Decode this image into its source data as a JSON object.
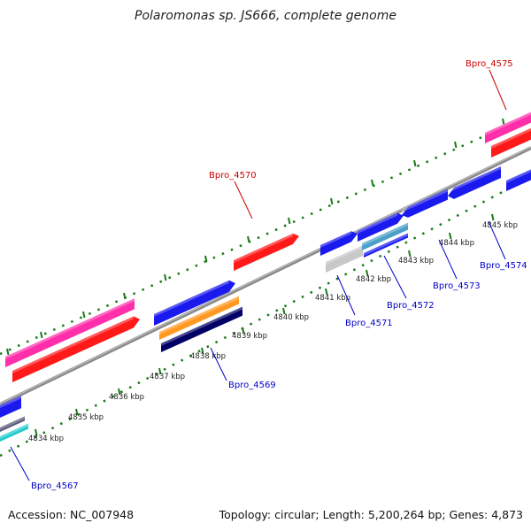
{
  "title": "Polaromonas sp. JS666, complete genome",
  "footer": {
    "accession": "Accession: NC_007948",
    "summary": "Topology: circular; Length: 5,200,264 bp; Genes: 4,873"
  },
  "ticks": [
    "4834 kbp",
    "4835 kbp",
    "4836 kbp",
    "4837 kbp",
    "4838 kbp",
    "4839 kbp",
    "4840 kbp",
    "4841 kbp",
    "4842 kbp",
    "4843 kbp",
    "4844 kbp",
    "4845 kbp"
  ],
  "gene_labels": {
    "bpro_4567": "Bpro_4567",
    "bpro_4569": "Bpro_4569",
    "bpro_4570": "Bpro_4570",
    "bpro_4571": "Bpro_4571",
    "bpro_4572": "Bpro_4572",
    "bpro_4573": "Bpro_4573",
    "bpro_4574": "Bpro_4574",
    "bpro_4575": "Bpro_4575"
  },
  "colors": {
    "backbone": "#8a8a8a",
    "tick_green": "#1a7a1a",
    "label_blue": "#0000cc",
    "label_red": "#cc0000",
    "gene_red": "#ff1a1a",
    "gene_pink": "#ff2eaa",
    "gene_blue": "#1a1aee",
    "gene_orange": "#ff9922",
    "gene_navy": "#000066",
    "gene_gray": "#c8c8c8",
    "gene_lightblue": "#4aa0c8",
    "gene_cyan": "#22cccc"
  }
}
